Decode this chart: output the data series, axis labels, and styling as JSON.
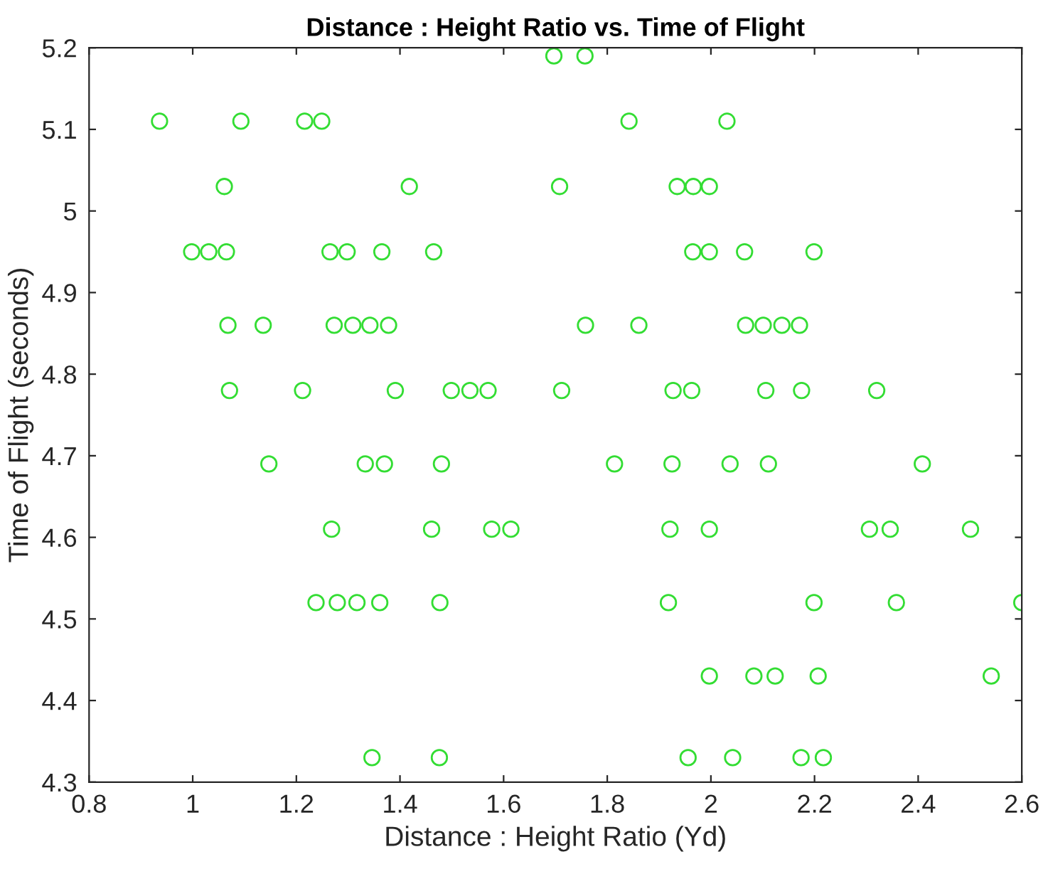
{
  "chart_data": {
    "type": "scatter",
    "title": "Distance : Height Ratio vs. Time of Flight",
    "xlabel": "Distance : Height Ratio (Yd)",
    "ylabel": "Time of Flight (seconds)",
    "series": [
      {
        "color": "#33dd33",
        "x": [
          1.697,
          1.757,
          0.936,
          1.093,
          1.216,
          1.249,
          1.842,
          2.031,
          1.061,
          1.418,
          1.708,
          1.935,
          1.966,
          1.997,
          0.998,
          1.031,
          1.065,
          1.265,
          1.298,
          1.365,
          1.465,
          1.965,
          1.997,
          2.065,
          2.199,
          1.068,
          1.136,
          1.273,
          1.309,
          1.342,
          1.378,
          1.758,
          1.861,
          2.067,
          2.101,
          2.137,
          2.171,
          1.071,
          1.212,
          1.391,
          1.499,
          1.535,
          1.57,
          1.712,
          1.927,
          1.963,
          2.106,
          2.175,
          2.32,
          1.147,
          1.333,
          1.37,
          1.48,
          1.814,
          1.925,
          2.037,
          2.111,
          2.408,
          1.268,
          1.461,
          1.577,
          1.614,
          1.921,
          1.997,
          2.306,
          2.346,
          2.501,
          1.238,
          1.279,
          1.317,
          1.361,
          1.477,
          1.918,
          2.199,
          2.358,
          2.6,
          1.997,
          2.083,
          2.124,
          2.207,
          2.541,
          1.346,
          1.476,
          1.956,
          2.042,
          2.174,
          2.217
        ],
        "values": [
          5.19,
          5.19,
          5.11,
          5.11,
          5.11,
          5.11,
          5.11,
          5.11,
          5.03,
          5.03,
          5.03,
          5.03,
          5.03,
          5.03,
          4.95,
          4.95,
          4.95,
          4.95,
          4.95,
          4.95,
          4.95,
          4.95,
          4.95,
          4.95,
          4.95,
          4.86,
          4.86,
          4.86,
          4.86,
          4.86,
          4.86,
          4.86,
          4.86,
          4.86,
          4.86,
          4.86,
          4.86,
          4.78,
          4.78,
          4.78,
          4.78,
          4.78,
          4.78,
          4.78,
          4.78,
          4.78,
          4.78,
          4.78,
          4.78,
          4.69,
          4.69,
          4.69,
          4.69,
          4.69,
          4.69,
          4.69,
          4.69,
          4.69,
          4.61,
          4.61,
          4.61,
          4.61,
          4.61,
          4.61,
          4.61,
          4.61,
          4.61,
          4.52,
          4.52,
          4.52,
          4.52,
          4.52,
          4.52,
          4.52,
          4.52,
          4.52,
          4.43,
          4.43,
          4.43,
          4.43,
          4.43,
          4.33,
          4.33,
          4.33,
          4.33,
          4.33,
          4.33
        ]
      }
    ],
    "marker": "circle",
    "grid": false,
    "legend": false,
    "xlim": [
      0.8,
      2.6
    ],
    "xticks": [
      0.8,
      1,
      1.2,
      1.4,
      1.6,
      1.8,
      2,
      2.2,
      2.4,
      2.6
    ],
    "ylim": [
      4.3,
      5.2
    ],
    "yticks": [
      4.3,
      4.4,
      4.5,
      4.6,
      4.7,
      4.8,
      4.9,
      5,
      5.1,
      5.2
    ]
  }
}
